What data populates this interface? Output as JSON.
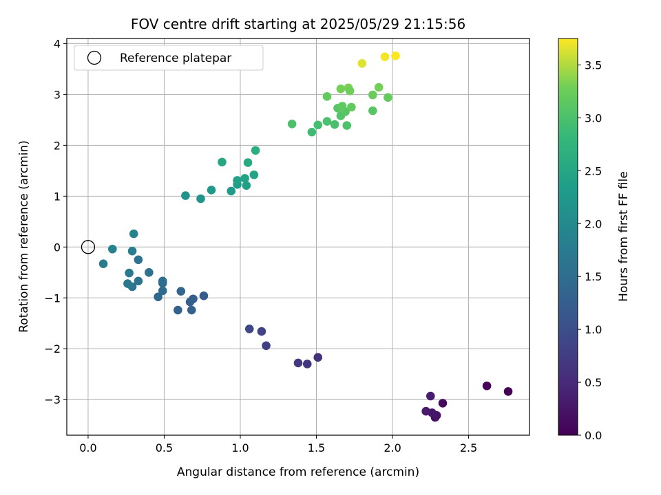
{
  "chart_data": {
    "type": "scatter",
    "title": "FOV centre drift starting at 2025/05/29 21:15:56",
    "xlabel": "Angular distance from reference (arcmin)",
    "ylabel": "Rotation from reference (arcmin)",
    "xlim": [
      -0.14,
      2.9
    ],
    "ylim": [
      -3.7,
      4.1
    ],
    "xticks": [
      0.0,
      0.5,
      1.0,
      1.5,
      2.0,
      2.5
    ],
    "xtick_labels": [
      "0.0",
      "0.5",
      "1.0",
      "1.5",
      "2.0",
      "2.5"
    ],
    "yticks": [
      -3,
      -2,
      -1,
      0,
      1,
      2,
      3,
      4
    ],
    "ytick_labels": [
      "−3",
      "−2",
      "−1",
      "0",
      "1",
      "2",
      "3",
      "4"
    ],
    "grid": true,
    "legend": {
      "placement": "top-left",
      "entries": [
        "Reference platepar"
      ]
    },
    "reference_point": {
      "x": 0.0,
      "y": 0.0
    },
    "colorbar": {
      "label": "Hours from first FF file",
      "range": [
        0.0,
        3.75
      ],
      "ticks": [
        0.0,
        0.5,
        1.0,
        1.5,
        2.0,
        2.5,
        3.0,
        3.5
      ],
      "tick_labels": [
        "0.0",
        "0.5",
        "1.0",
        "1.5",
        "2.0",
        "2.5",
        "3.0",
        "3.5"
      ],
      "colormap": "viridis"
    },
    "points": [
      {
        "x": 2.76,
        "y": -2.84,
        "c": 0.0
      },
      {
        "x": 2.62,
        "y": -2.73,
        "c": 0.05
      },
      {
        "x": 2.33,
        "y": -3.07,
        "c": 0.12
      },
      {
        "x": 2.28,
        "y": -3.35,
        "c": 0.18
      },
      {
        "x": 2.29,
        "y": -3.31,
        "c": 0.22
      },
      {
        "x": 2.26,
        "y": -3.26,
        "c": 0.26
      },
      {
        "x": 2.22,
        "y": -3.23,
        "c": 0.3
      },
      {
        "x": 2.25,
        "y": -2.93,
        "c": 0.35
      },
      {
        "x": 1.51,
        "y": -2.17,
        "c": 0.6
      },
      {
        "x": 1.44,
        "y": -2.3,
        "c": 0.65
      },
      {
        "x": 1.38,
        "y": -2.28,
        "c": 0.7
      },
      {
        "x": 1.17,
        "y": -1.94,
        "c": 0.8
      },
      {
        "x": 1.14,
        "y": -1.66,
        "c": 0.85
      },
      {
        "x": 1.06,
        "y": -1.61,
        "c": 0.9
      },
      {
        "x": 0.76,
        "y": -0.96,
        "c": 1.2
      },
      {
        "x": 0.69,
        "y": -1.02,
        "c": 1.25
      },
      {
        "x": 0.67,
        "y": -1.08,
        "c": 1.28
      },
      {
        "x": 0.68,
        "y": -1.24,
        "c": 1.3
      },
      {
        "x": 0.59,
        "y": -1.24,
        "c": 1.33
      },
      {
        "x": 0.61,
        "y": -0.87,
        "c": 1.38
      },
      {
        "x": 0.49,
        "y": -0.86,
        "c": 1.45
      },
      {
        "x": 0.49,
        "y": -0.71,
        "c": 1.48
      },
      {
        "x": 0.49,
        "y": -0.67,
        "c": 1.5
      },
      {
        "x": 0.46,
        "y": -0.98,
        "c": 1.42
      },
      {
        "x": 0.4,
        "y": -0.5,
        "c": 1.55
      },
      {
        "x": 0.33,
        "y": -0.67,
        "c": 1.6
      },
      {
        "x": 0.33,
        "y": -0.25,
        "c": 1.58
      },
      {
        "x": 0.29,
        "y": -0.78,
        "c": 1.65
      },
      {
        "x": 0.26,
        "y": -0.72,
        "c": 1.7
      },
      {
        "x": 0.27,
        "y": -0.51,
        "c": 1.72
      },
      {
        "x": 0.1,
        "y": -0.33,
        "c": 1.75
      },
      {
        "x": 0.29,
        "y": -0.08,
        "c": 1.8
      },
      {
        "x": 0.16,
        "y": -0.04,
        "c": 1.85
      },
      {
        "x": 0.3,
        "y": 0.26,
        "c": 1.9
      },
      {
        "x": 0.64,
        "y": 1.01,
        "c": 2.15
      },
      {
        "x": 0.74,
        "y": 0.95,
        "c": 2.2
      },
      {
        "x": 0.81,
        "y": 1.12,
        "c": 2.25
      },
      {
        "x": 0.94,
        "y": 1.1,
        "c": 2.3
      },
      {
        "x": 0.98,
        "y": 1.23,
        "c": 2.35
      },
      {
        "x": 0.98,
        "y": 1.31,
        "c": 2.4
      },
      {
        "x": 1.03,
        "y": 1.35,
        "c": 2.42
      },
      {
        "x": 1.04,
        "y": 1.21,
        "c": 2.38
      },
      {
        "x": 1.09,
        "y": 1.42,
        "c": 2.45
      },
      {
        "x": 1.05,
        "y": 1.66,
        "c": 2.55
      },
      {
        "x": 0.88,
        "y": 1.67,
        "c": 2.5
      },
      {
        "x": 1.1,
        "y": 1.9,
        "c": 2.65
      },
      {
        "x": 1.34,
        "y": 2.42,
        "c": 3.0
      },
      {
        "x": 1.47,
        "y": 2.26,
        "c": 2.9
      },
      {
        "x": 1.51,
        "y": 2.4,
        "c": 2.95
      },
      {
        "x": 1.57,
        "y": 2.47,
        "c": 3.0
      },
      {
        "x": 1.62,
        "y": 2.41,
        "c": 2.98
      },
      {
        "x": 1.7,
        "y": 2.39,
        "c": 3.02
      },
      {
        "x": 1.66,
        "y": 2.58,
        "c": 3.05
      },
      {
        "x": 1.69,
        "y": 2.66,
        "c": 3.1
      },
      {
        "x": 1.64,
        "y": 2.73,
        "c": 3.12
      },
      {
        "x": 1.67,
        "y": 2.77,
        "c": 3.15
      },
      {
        "x": 1.73,
        "y": 2.75,
        "c": 3.18
      },
      {
        "x": 1.57,
        "y": 2.96,
        "c": 3.2
      },
      {
        "x": 1.87,
        "y": 2.68,
        "c": 3.1
      },
      {
        "x": 1.87,
        "y": 2.99,
        "c": 3.25
      },
      {
        "x": 1.97,
        "y": 2.94,
        "c": 3.2
      },
      {
        "x": 1.66,
        "y": 3.11,
        "c": 3.3
      },
      {
        "x": 1.71,
        "y": 3.13,
        "c": 3.32
      },
      {
        "x": 1.72,
        "y": 3.07,
        "c": 3.28
      },
      {
        "x": 1.91,
        "y": 3.14,
        "c": 3.3
      },
      {
        "x": 1.8,
        "y": 3.61,
        "c": 3.65
      },
      {
        "x": 1.95,
        "y": 3.74,
        "c": 3.72
      },
      {
        "x": 2.02,
        "y": 3.76,
        "c": 3.75
      }
    ]
  }
}
